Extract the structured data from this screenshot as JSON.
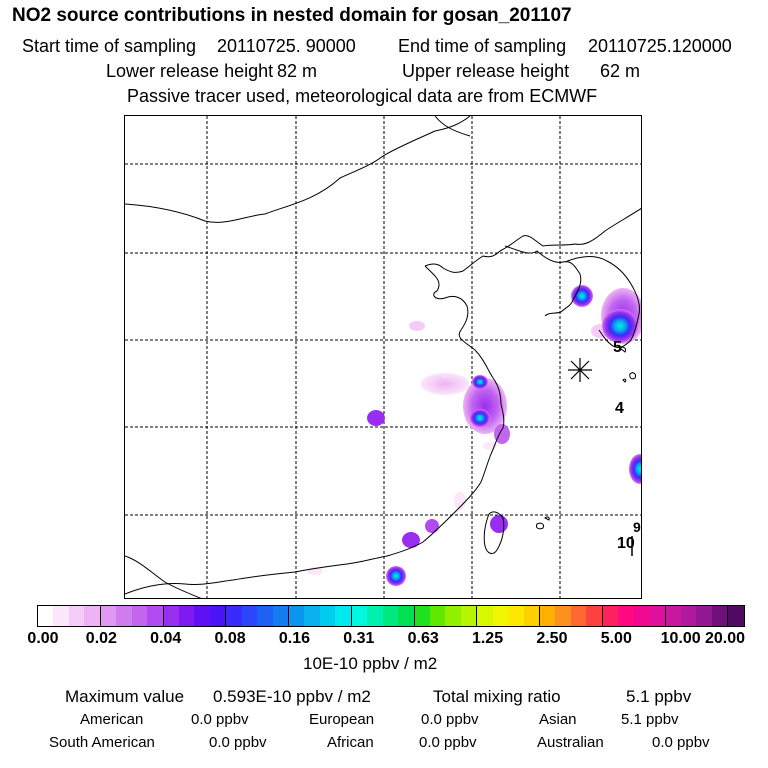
{
  "header": {
    "title": "NO2 source contributions in nested domain for gosan_201107",
    "start_label": "Start time of sampling",
    "start_value": "20110725. 90000",
    "end_label": "End time of sampling",
    "end_value": "20110725.120000",
    "lower_label": "Lower release height",
    "lower_value": "82 m",
    "upper_label": "Upper release height",
    "upper_value": "62 m",
    "note": "Passive tracer used, meteorological data are from ECMWF"
  },
  "map": {
    "receptor_icon": "asterisk-receptor-marker",
    "labels": [
      "5",
      "4",
      "9",
      "10"
    ]
  },
  "colorbar": {
    "colors": [
      "#ffffff",
      "#fbe6fb",
      "#f5ccf7",
      "#eeb3f4",
      "#e098f2",
      "#d07df0",
      "#c266f0",
      "#b04cf0",
      "#9a2ef0",
      "#7f1af2",
      "#6010f5",
      "#4a14f8",
      "#3a2bfa",
      "#2a46f8",
      "#1d60f4",
      "#127cf0",
      "#0a96ee",
      "#08b0ec",
      "#00ccf0",
      "#00e8f0",
      "#00f8e0",
      "#00f0b0",
      "#00e880",
      "#00e050",
      "#20e020",
      "#60e800",
      "#90f000",
      "#b8f400",
      "#d8f800",
      "#f0f800",
      "#ffe800",
      "#ffd000",
      "#ffb000",
      "#ff9020",
      "#ff6830",
      "#ff4040",
      "#ff2060",
      "#ff0880",
      "#f00890",
      "#e0109c",
      "#c818a0",
      "#b018a0",
      "#901890",
      "#70107c",
      "#500a60"
    ],
    "ticks": [
      "0.00",
      "0.02",
      "0.04",
      "0.08",
      "0.16",
      "0.31",
      "0.63",
      "1.25",
      "2.50",
      "5.00",
      "10.00",
      "20.00"
    ],
    "units": "10E-10 ppbv / m2"
  },
  "stats": {
    "max_label": "Maximum value",
    "max_value": "0.593E-10 ppbv / m2",
    "total_label": "Total mixing ratio",
    "total_value": "5.1 ppbv",
    "regions": [
      {
        "name": "American",
        "value": "0.0 ppbv"
      },
      {
        "name": "European",
        "value": "0.0 ppbv"
      },
      {
        "name": "Asian",
        "value": "5.1 ppbv"
      },
      {
        "name": "South American",
        "value": "0.0 ppbv"
      },
      {
        "name": "African",
        "value": "0.0 ppbv"
      },
      {
        "name": "Australian",
        "value": "0.0 ppbv"
      }
    ]
  }
}
